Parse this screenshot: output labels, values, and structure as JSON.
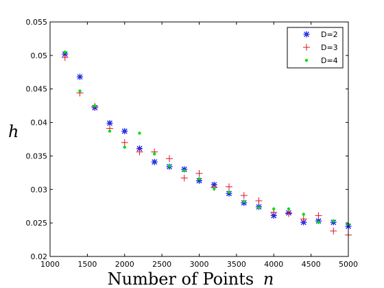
{
  "chart_data": {
    "type": "scatter",
    "title": "",
    "xlabel": "Number of Points",
    "xlabel_var": "n",
    "ylabel": "h",
    "xlim": [
      1000,
      5000
    ],
    "ylim": [
      0.02,
      0.055
    ],
    "xticks": [
      1000,
      1500,
      2000,
      2500,
      3000,
      3500,
      4000,
      4500,
      5000
    ],
    "xtick_labels": [
      "1000",
      "1500",
      "2000",
      "2500",
      "3000",
      "3500",
      "4000",
      "4500",
      "5000"
    ],
    "yticks": [
      0.02,
      0.025,
      0.03,
      0.035,
      0.04,
      0.045,
      0.05,
      0.055
    ],
    "ytick_labels": [
      "0.02",
      "0.025",
      "0.03",
      "0.035",
      "0.04",
      "0.045",
      "0.05",
      "0.055"
    ],
    "grid": false,
    "legend_position": "top-right",
    "x": [
      1200,
      1400,
      1600,
      1800,
      2000,
      2200,
      2400,
      2600,
      2800,
      3000,
      3200,
      3400,
      3600,
      3800,
      4000,
      4200,
      4400,
      4600,
      4800,
      5000
    ],
    "series": [
      {
        "name": "D=2",
        "marker": "asterisk",
        "color": "#0000ff",
        "accent": "#00a000",
        "values": [
          0.0502,
          0.0468,
          0.0422,
          0.0399,
          0.0387,
          0.0361,
          0.0341,
          0.0334,
          0.033,
          0.0313,
          0.0307,
          0.0294,
          0.028,
          0.0274,
          0.0261,
          0.0265,
          0.0251,
          0.0253,
          0.0251,
          0.0245
        ]
      },
      {
        "name": "D=3",
        "marker": "plus",
        "color": "#e01020",
        "values": [
          0.0497,
          0.0444,
          0.0424,
          0.0391,
          0.037,
          0.0356,
          0.0356,
          0.0346,
          0.0317,
          0.0324,
          0.0303,
          0.0304,
          0.0291,
          0.0283,
          0.0266,
          0.0264,
          0.0256,
          0.0261,
          0.0238,
          0.0232
        ]
      },
      {
        "name": "D=4",
        "marker": "dot",
        "color": "#00e000",
        "values": [
          0.0505,
          0.0447,
          0.0425,
          0.0387,
          0.0363,
          0.0384,
          0.0353,
          0.0335,
          0.0328,
          0.0316,
          0.0301,
          0.0296,
          0.0282,
          0.0273,
          0.0271,
          0.0271,
          0.0263,
          0.0251,
          0.0253,
          0.0248
        ]
      }
    ]
  }
}
